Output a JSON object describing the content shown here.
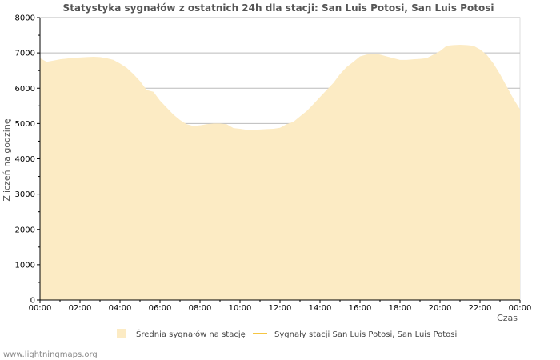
{
  "chart_data": {
    "type": "area",
    "title": "Statystyka sygnałów z ostatnich 24h dla stacji: San Luis Potosi, San Luis Potosi",
    "xlabel": "Czas",
    "ylabel": "Zliczeń na godzinę",
    "ylim": [
      0,
      8000
    ],
    "yticks": [
      "0",
      "1000",
      "2000",
      "3000",
      "4000",
      "5000",
      "6000",
      "7000",
      "8000"
    ],
    "xlim_hours": [
      0,
      24
    ],
    "xticks": [
      "00:00",
      "02:00",
      "04:00",
      "06:00",
      "08:00",
      "10:00",
      "12:00",
      "14:00",
      "16:00",
      "18:00",
      "20:00",
      "22:00",
      "00:00"
    ],
    "grid": true,
    "legend_position": "bottom",
    "series": [
      {
        "name": "Średnia sygnałów na stację",
        "kind": "area",
        "color": "#fcebc4",
        "x": [
          0,
          0.33,
          0.67,
          1.0,
          1.33,
          1.67,
          2.0,
          2.33,
          2.67,
          3.0,
          3.33,
          3.67,
          4.0,
          4.33,
          4.67,
          5.0,
          5.33,
          5.67,
          6.0,
          6.33,
          6.67,
          7.0,
          7.33,
          7.67,
          8.0,
          8.33,
          8.67,
          9.0,
          9.33,
          9.67,
          10.0,
          10.33,
          10.67,
          11.0,
          11.33,
          11.67,
          12.0,
          12.33,
          12.67,
          13.0,
          13.33,
          13.67,
          14.0,
          14.33,
          14.67,
          15.0,
          15.33,
          15.67,
          16.0,
          16.33,
          16.67,
          17.0,
          17.33,
          17.67,
          18.0,
          18.33,
          18.67,
          19.0,
          19.33,
          19.67,
          20.0,
          20.33,
          20.67,
          21.0,
          21.33,
          21.67,
          22.0,
          22.33,
          22.67,
          23.0,
          23.33,
          23.67,
          24.0
        ],
        "values": [
          6850,
          6750,
          6780,
          6820,
          6840,
          6860,
          6870,
          6880,
          6890,
          6880,
          6850,
          6800,
          6700,
          6580,
          6400,
          6200,
          5950,
          5900,
          5650,
          5450,
          5250,
          5100,
          4980,
          4930,
          4950,
          4980,
          5000,
          5000,
          4980,
          4870,
          4850,
          4820,
          4820,
          4830,
          4840,
          4850,
          4880,
          4980,
          5050,
          5200,
          5350,
          5550,
          5750,
          5950,
          6150,
          6400,
          6600,
          6750,
          6900,
          6950,
          6980,
          6950,
          6900,
          6850,
          6800,
          6800,
          6820,
          6830,
          6850,
          6950,
          7050,
          7200,
          7220,
          7230,
          7220,
          7200,
          7100,
          6950,
          6700,
          6400,
          6050,
          5700,
          5400
        ]
      },
      {
        "name": "Sygnały stacji San Luis Potosi, San Luis Potosi",
        "kind": "line",
        "color": "#f5c542",
        "x": [],
        "values": []
      }
    ]
  },
  "watermark": "www.lightningmaps.org"
}
